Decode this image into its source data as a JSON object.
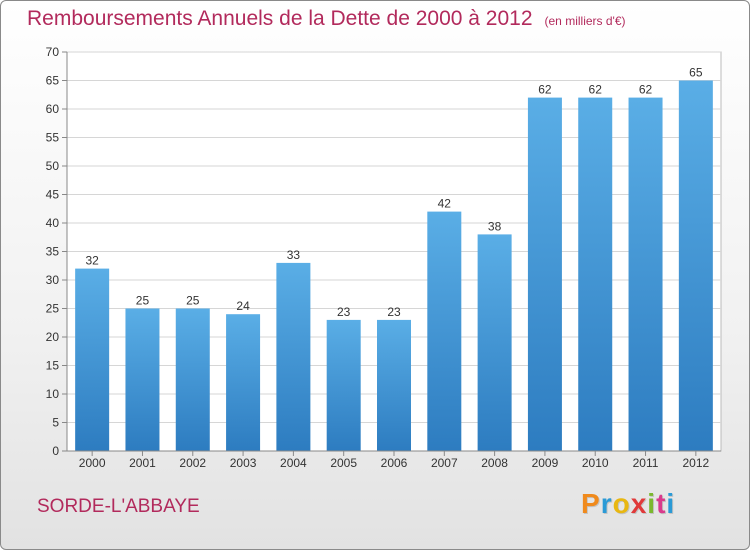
{
  "header": {
    "title": "Remboursements Annuels de la Dette de 2000 à 2012",
    "unit": "(en milliers d'€)"
  },
  "footer": {
    "commune": "SORDE-L'ABBAYE",
    "brand": "Proxiti",
    "brand_colors": [
      "#f08a1c",
      "#2a9ad6",
      "#e8b711",
      "#e03a3a",
      "#7ab82e",
      "#d93a8c",
      "#2a9ad6"
    ]
  },
  "colors": {
    "bar_top": "#5aaee6",
    "bar_bottom": "#2d7cc0",
    "title": "#b22a5c"
  },
  "chart_data": {
    "type": "bar",
    "title": "Remboursements Annuels de la Dette de 2000 à 2012",
    "subtitle": "(en milliers d'€)",
    "xlabel": "",
    "ylabel": "",
    "categories": [
      "2000",
      "2001",
      "2002",
      "2003",
      "2004",
      "2005",
      "2006",
      "2007",
      "2008",
      "2009",
      "2010",
      "2011",
      "2012"
    ],
    "values": [
      32,
      25,
      25,
      24,
      33,
      23,
      23,
      42,
      38,
      62,
      62,
      62,
      65
    ],
    "ylim": [
      0,
      70
    ],
    "yticks": [
      0,
      5,
      10,
      15,
      20,
      25,
      30,
      35,
      40,
      45,
      50,
      55,
      60,
      65,
      70
    ],
    "grid": true,
    "data_labels": true
  }
}
